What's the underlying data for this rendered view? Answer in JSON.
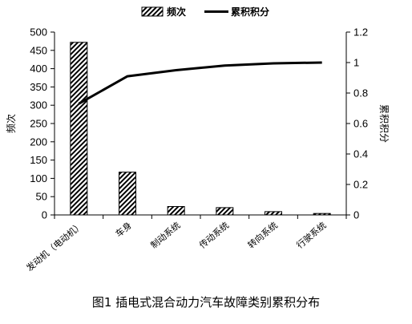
{
  "chart_data": {
    "type": "bar+line",
    "categories": [
      "发动机（电动机）",
      "车身",
      "制动系统",
      "传动系统",
      "转向系统",
      "行驶系统"
    ],
    "series": [
      {
        "name": "频次",
        "type": "bar",
        "axis": "left",
        "values": [
          472,
          117,
          23,
          20,
          9,
          4
        ]
      },
      {
        "name": "累积积分",
        "type": "line",
        "axis": "right",
        "values": [
          0.73,
          0.91,
          0.95,
          0.98,
          0.995,
          1.0
        ]
      }
    ],
    "ylabel": "频次",
    "y2label": "累积积分",
    "ylim": [
      0,
      500
    ],
    "y2lim": [
      0,
      1.2
    ],
    "yticks": [
      "0",
      "50",
      "100",
      "150",
      "200",
      "250",
      "300",
      "350",
      "400",
      "450",
      "500"
    ],
    "y2ticks": [
      "0",
      "0.2",
      "0.4",
      "0.6",
      "0.8",
      "1",
      "1.2"
    ],
    "legend": [
      "频次",
      "累积积分"
    ],
    "legend_position": "top-center",
    "grid": false,
    "bar_fill": "diagonal-hatch",
    "bar_color": "#000000",
    "line_color": "#000000"
  },
  "caption": "图1  插电式混合动力汽车故障类别累积分布"
}
